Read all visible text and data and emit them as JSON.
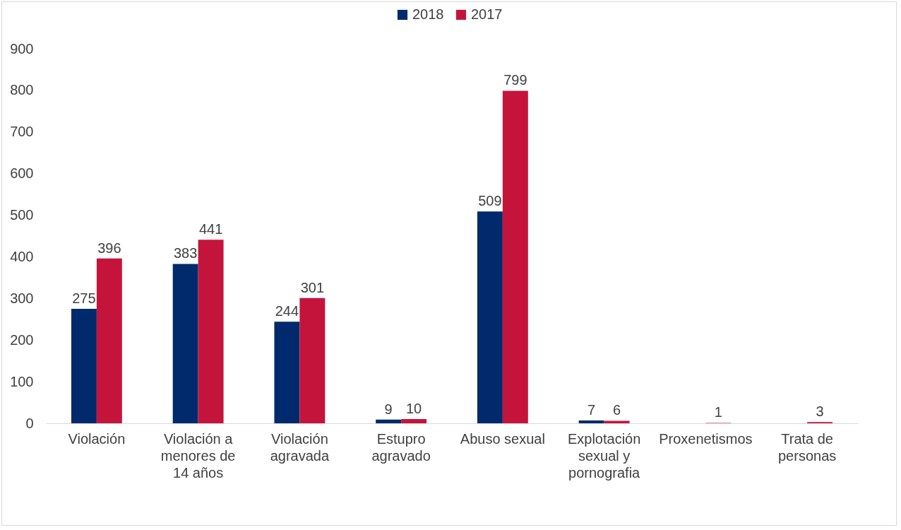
{
  "chart_data": {
    "type": "bar",
    "categories": [
      "Violación",
      "Violación a menores de 14 años",
      "Violación agravada",
      "Estupro agravado",
      "Abuso sexual",
      "Explotación sexual y pornografia",
      "Proxenetismos",
      "Trata de personas"
    ],
    "series": [
      {
        "name": "2018",
        "color": "#002a6b",
        "values": [
          275,
          383,
          244,
          9,
          509,
          7,
          null,
          null
        ]
      },
      {
        "name": "2017",
        "color": "#c5143c",
        "values": [
          396,
          441,
          301,
          10,
          799,
          6,
          1,
          3
        ]
      }
    ],
    "ylim": [
      0,
      900
    ],
    "yticks": [
      0,
      100,
      200,
      300,
      400,
      500,
      600,
      700,
      800,
      900
    ],
    "grid": false,
    "legend": "top",
    "data_labels": true
  }
}
